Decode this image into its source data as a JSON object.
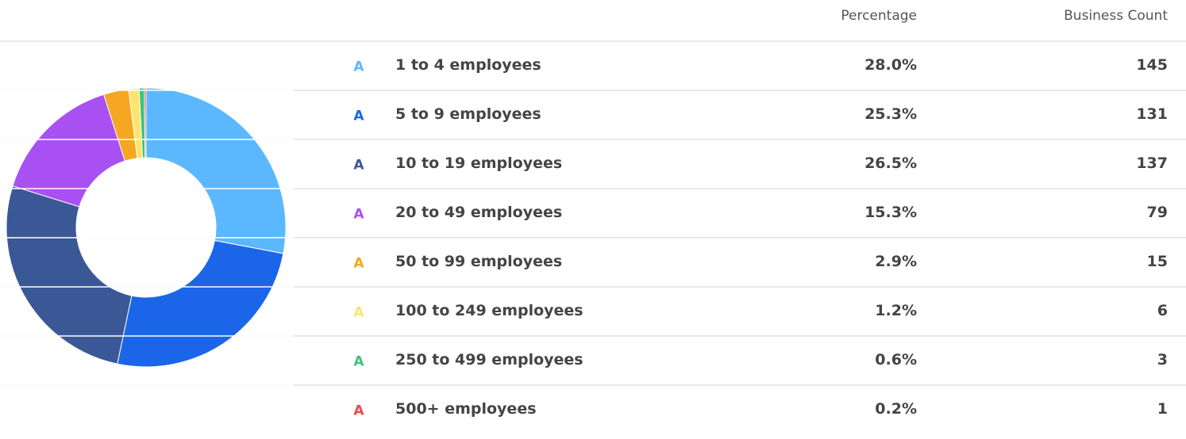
{
  "chart_data": {
    "type": "pie",
    "donut": true,
    "columns": [
      "Percentage",
      "Business Count"
    ],
    "legend_marker": "A",
    "categories": [
      "1 to 4 employees",
      "5 to 9 employees",
      "10 to 19 employees",
      "20 to 49 employees",
      "50 to 99 employees",
      "100 to 249 employees",
      "250 to 499 employees",
      "500+  employees"
    ],
    "values": [
      28.0,
      25.3,
      26.5,
      15.3,
      2.9,
      1.2,
      0.6,
      0.2
    ],
    "value_labels": [
      "28.0%",
      "25.3%",
      "26.5%",
      "15.3%",
      "2.9%",
      "1.2%",
      "0.6%",
      "0.2%"
    ],
    "counts": [
      145,
      131,
      137,
      79,
      15,
      6,
      3,
      1
    ],
    "colors": [
      "#5bb8ff",
      "#1b66e8",
      "#3b5896",
      "#a950f2",
      "#f5a623",
      "#fde46c",
      "#3cc47c",
      "#e84a4a"
    ]
  }
}
